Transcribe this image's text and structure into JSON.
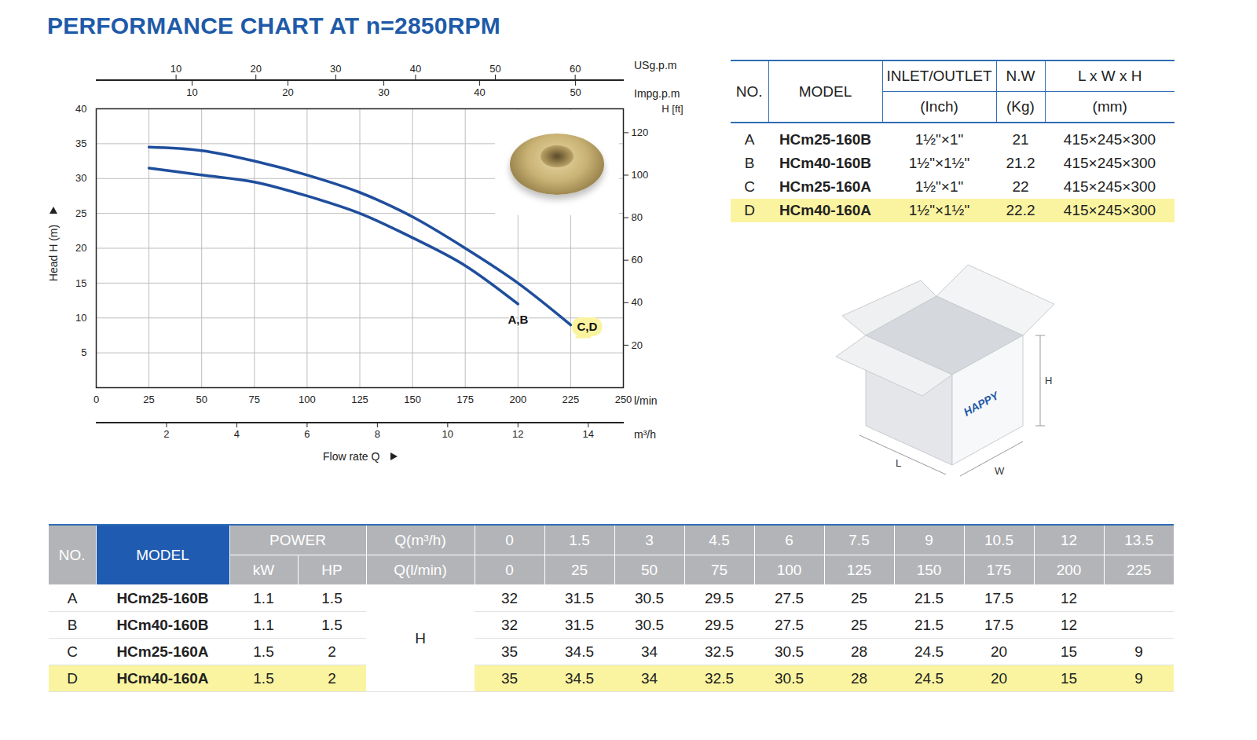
{
  "title": "PERFORMANCE CHART AT n=2850RPM",
  "chart_data": {
    "type": "line",
    "xlabel": "Flow rate Q",
    "ylabel": "Head H (m)",
    "x_unit": "l/min",
    "x": [
      25,
      50,
      75,
      100,
      125,
      150,
      175,
      200,
      225
    ],
    "series": [
      {
        "name": "A,B",
        "color": "#1f4e9c",
        "values": [
          31.5,
          30.5,
          29.5,
          27.5,
          25,
          21.5,
          17.5,
          12,
          null
        ]
      },
      {
        "name": "C,D",
        "color": "#1f4e9c",
        "values": [
          34.5,
          34,
          32.5,
          30.5,
          28,
          24.5,
          20,
          15,
          9
        ]
      }
    ],
    "xlim": [
      0,
      250
    ],
    "xticks": [
      0,
      25,
      50,
      75,
      100,
      125,
      150,
      175,
      200,
      225,
      250
    ],
    "ylim": [
      0,
      40
    ],
    "yticks": [
      5,
      10,
      15,
      20,
      25,
      30,
      35,
      40
    ],
    "y2label": "H [ft]",
    "y2lim": [
      0,
      131.23
    ],
    "y2ticks": [
      20,
      40,
      60,
      80,
      100,
      120
    ],
    "extra_x_axes": [
      {
        "label": "USg.p.m",
        "lim": [
          0,
          66.04
        ],
        "ticks": [
          10,
          20,
          30,
          40,
          50,
          60
        ],
        "position": "top"
      },
      {
        "label": "Impg.p.m",
        "lim": [
          0,
          54.99
        ],
        "ticks": [
          10,
          20,
          30,
          40,
          50
        ],
        "position": "top"
      },
      {
        "label": "m³/h",
        "lim": [
          0,
          15
        ],
        "ticks": [
          2,
          4,
          6,
          8,
          10,
          12,
          14
        ],
        "position": "bottom"
      }
    ],
    "grid": true
  },
  "spec_table": {
    "columns": [
      {
        "head": "NO."
      },
      {
        "head": "MODEL"
      },
      {
        "head": "INLET/OUTLET",
        "unit": "(Inch)"
      },
      {
        "head": "N.W",
        "unit": "(Kg)"
      },
      {
        "head": "L x W x H",
        "unit": "(mm)"
      }
    ],
    "rows": [
      {
        "no": "A",
        "model": "HCm25-160B",
        "inlet_outlet": "1½\"×1\"",
        "nw": 21,
        "dimensions": "415×245×300",
        "color": null
      },
      {
        "no": "B",
        "model": "HCm40-160B",
        "inlet_outlet": "1½\"×1½\"",
        "nw": 21.2,
        "dimensions": "415×245×300",
        "color": null
      },
      {
        "no": "C",
        "model": "HCm25-160A",
        "inlet_outlet": "1½\"×1\"",
        "nw": 22,
        "dimensions": "415×245×300",
        "color": null
      },
      {
        "no": "D",
        "model": "HCm40-160A",
        "inlet_outlet": "1½\"×1½\"",
        "nw": 22.2,
        "dimensions": "415×245×300",
        "color": "#faf4a0"
      }
    ]
  },
  "package": {
    "brand": "HAPPY",
    "length": "L",
    "width": "W",
    "height": "H"
  },
  "performance_table": {
    "headers": {
      "no": "NO.",
      "model": "MODEL",
      "power": "POWER",
      "kw": "kW",
      "hp": "HP",
      "q_m3h": "Q(m³/h)",
      "q_lmin": "Q(l/min)",
      "head": "H"
    },
    "q_m3h": [
      0,
      1.5,
      3,
      4.5,
      6,
      7.5,
      9,
      10.5,
      12,
      13.5
    ],
    "q_lmin": [
      0,
      25,
      50,
      75,
      100,
      125,
      150,
      175,
      200,
      225
    ],
    "rows": [
      {
        "no": "A",
        "model": "HCm25-160B",
        "kw": 1.1,
        "hp": 1.5,
        "h": [
          32,
          31.5,
          30.5,
          29.5,
          27.5,
          25,
          21.5,
          17.5,
          12,
          null
        ],
        "color": null
      },
      {
        "no": "B",
        "model": "HCm40-160B",
        "kw": 1.1,
        "hp": 1.5,
        "h": [
          32,
          31.5,
          30.5,
          29.5,
          27.5,
          25,
          21.5,
          17.5,
          12,
          null
        ],
        "color": null
      },
      {
        "no": "C",
        "model": "HCm25-160A",
        "kw": 1.5,
        "hp": 2,
        "h": [
          35,
          34.5,
          34,
          32.5,
          30.5,
          28,
          24.5,
          20,
          15,
          9
        ],
        "color": null
      },
      {
        "no": "D",
        "model": "HCm40-160A",
        "kw": 1.5,
        "hp": 2,
        "h": [
          35,
          34.5,
          34,
          32.5,
          30.5,
          28,
          24.5,
          20,
          15,
          9
        ],
        "color": "#faf4a0"
      }
    ]
  }
}
